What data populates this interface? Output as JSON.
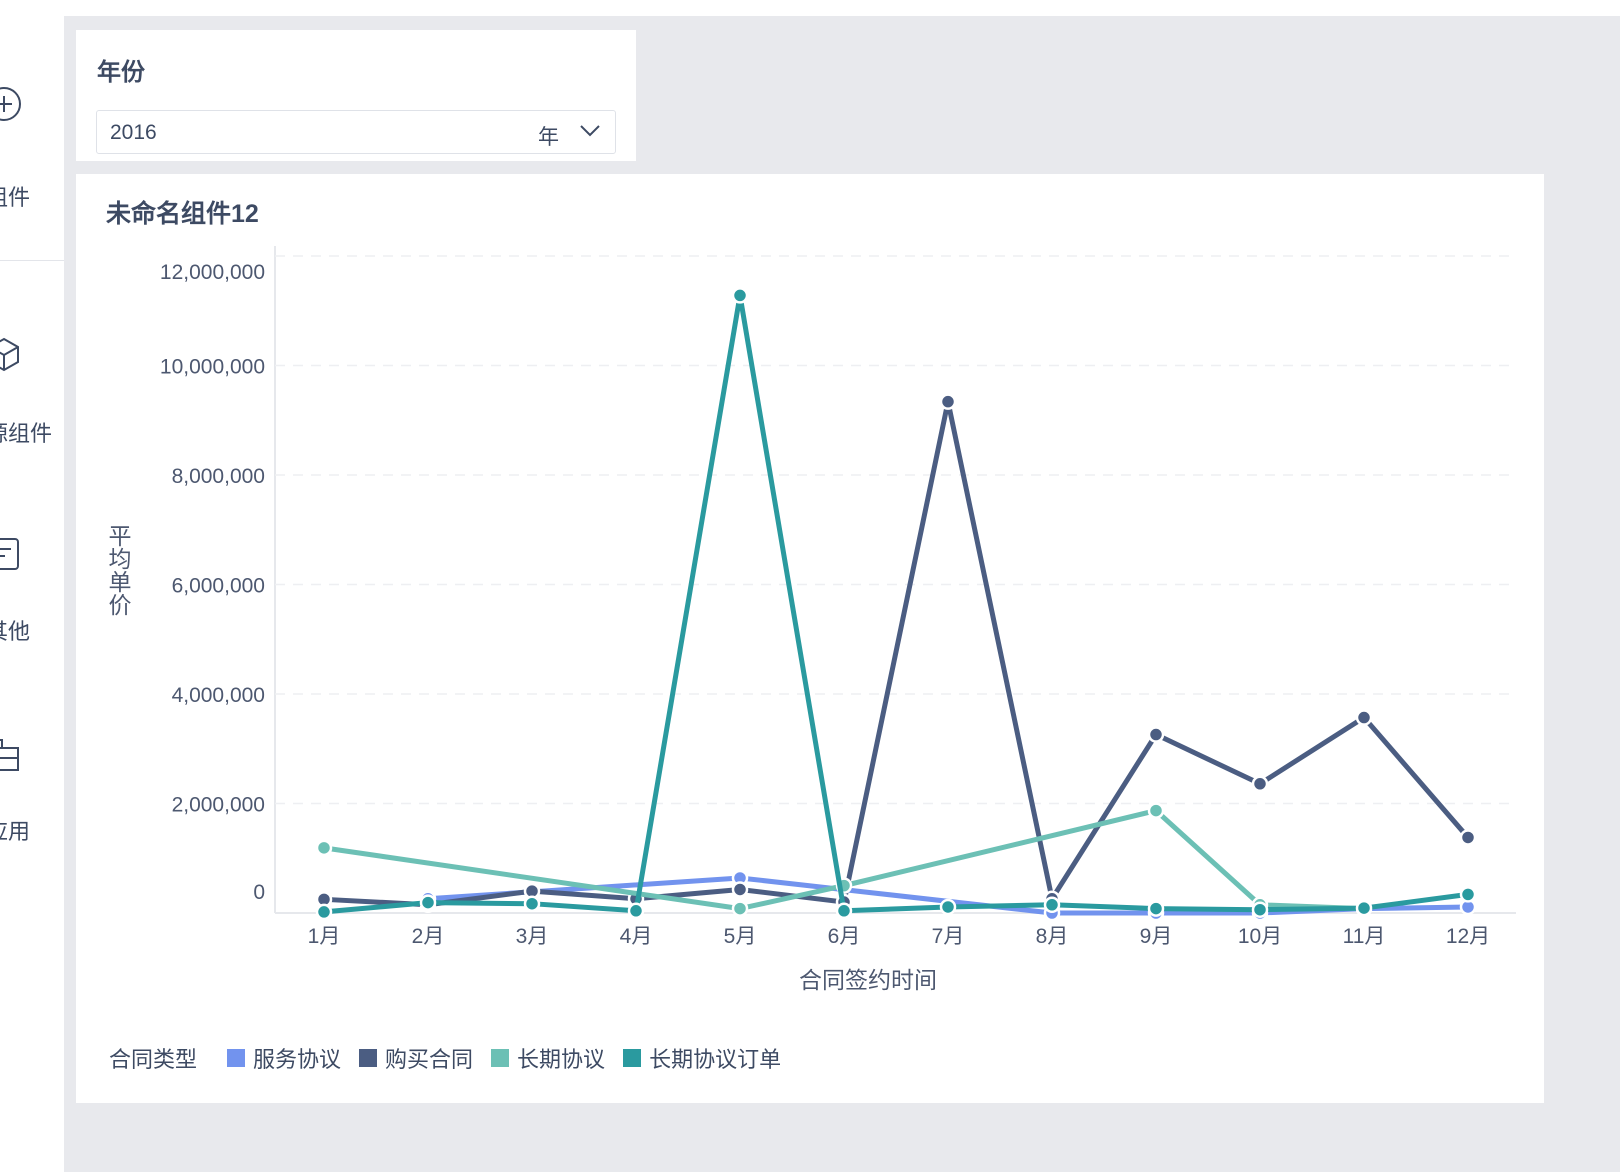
{
  "sidebar": {
    "items": [
      {
        "label": "组件",
        "icon": "plus-circle-icon"
      },
      {
        "label": "源组件",
        "icon": "cube-icon"
      },
      {
        "label": "其他",
        "icon": "text-box-icon"
      },
      {
        "label": "应用",
        "icon": "app-icon"
      }
    ]
  },
  "filter": {
    "title": "年份",
    "value": "2016",
    "unit": "年"
  },
  "chart_card": {
    "title": "未命名组件12"
  },
  "chart_data": {
    "type": "line",
    "title": "未命名组件12",
    "xlabel": "合同签约时间",
    "ylabel": "平均单价",
    "categories": [
      "1月",
      "2月",
      "3月",
      "4月",
      "5月",
      "6月",
      "7月",
      "8月",
      "9月",
      "10月",
      "11月",
      "12月"
    ],
    "ylim": [
      0,
      12000000
    ],
    "yticks": [
      0,
      2000000,
      4000000,
      6000000,
      8000000,
      10000000,
      12000000
    ],
    "ytick_labels": [
      "0",
      "2,000,000",
      "4,000,000",
      "6,000,000",
      "8,000,000",
      "10,000,000",
      "12,000,000"
    ],
    "grid": true,
    "legend_title": "合同类型",
    "legend_position": "bottom-left",
    "series": [
      {
        "name": "服务协议",
        "color": "#7293ee",
        "values": [
          null,
          260000,
          null,
          null,
          640000,
          null,
          null,
          0,
          0,
          0,
          80000,
          110000
        ]
      },
      {
        "name": "购买合同",
        "color": "#4b5d82",
        "values": [
          250000,
          150000,
          400000,
          260000,
          430000,
          200000,
          9340000,
          260000,
          3260000,
          2360000,
          3570000,
          1380000
        ]
      },
      {
        "name": "长期协议",
        "color": "#6cc0b5",
        "values": [
          1190000,
          null,
          null,
          null,
          80000,
          500000,
          null,
          null,
          1870000,
          150000,
          80000,
          null
        ]
      },
      {
        "name": "长期协议订单",
        "color": "#2a9a9f",
        "values": [
          20000,
          190000,
          170000,
          40000,
          11280000,
          40000,
          110000,
          150000,
          80000,
          60000,
          90000,
          340000
        ]
      }
    ]
  }
}
